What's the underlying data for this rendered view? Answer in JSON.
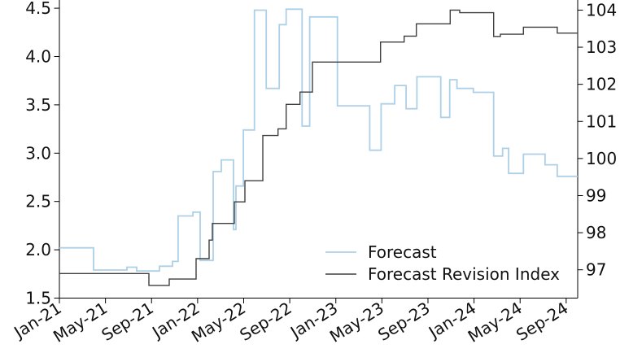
{
  "chart_data": {
    "type": "line",
    "subtype": "step-post",
    "title": "",
    "x_axis": {
      "unit": "months since Jan-2021",
      "tick_labels": [
        "Jan-21",
        "May-21",
        "Sep-21",
        "Jan-22",
        "May-22",
        "Sep-22",
        "Jan-23",
        "May-23",
        "Sep-23",
        "Jan-24",
        "May-24",
        "Sep-24"
      ],
      "tick_positions_months": [
        0,
        4,
        8,
        12,
        16,
        20,
        24,
        28,
        32,
        36,
        40,
        44
      ],
      "range_months": [
        0,
        45
      ],
      "label_rotation_deg": 32
    },
    "y_axis_left": {
      "ticks": [
        "1.5",
        "2.0",
        "2.5",
        "3.0",
        "3.5",
        "4.0",
        "4.5"
      ],
      "tick_values": [
        1.5,
        2.0,
        2.5,
        3.0,
        3.5,
        4.0,
        4.5
      ],
      "range": [
        1.5,
        4.5
      ],
      "applies_to_series": "Forecast"
    },
    "y_axis_right": {
      "ticks": [
        "97",
        "98",
        "99",
        "100",
        "101",
        "102",
        "103",
        "104"
      ],
      "tick_values": [
        97,
        98,
        99,
        100,
        101,
        102,
        103,
        104
      ],
      "range": [
        97,
        104
      ],
      "applies_to_series": "Forecast Revision Index"
    },
    "grid": false,
    "legend": {
      "position": "inside-lower-right",
      "frame": false,
      "entries": [
        "Forecast",
        "Forecast Revision Index"
      ]
    },
    "series": [
      {
        "name": "Forecast",
        "axis": "left",
        "color": "#aed0e6",
        "line_width": 1.8,
        "points": [
          [
            0,
            2.02
          ],
          [
            2.97,
            1.79
          ],
          [
            5.86,
            1.82
          ],
          [
            6.71,
            1.78
          ],
          [
            8.69,
            1.83
          ],
          [
            9.82,
            1.88
          ],
          [
            10.31,
            2.35
          ],
          [
            11.59,
            2.39
          ],
          [
            12.22,
            1.89
          ],
          [
            13.35,
            2.81
          ],
          [
            14.06,
            2.93
          ],
          [
            15.12,
            2.21
          ],
          [
            15.33,
            2.66
          ],
          [
            15.97,
            3.24
          ],
          [
            16.93,
            4.48
          ],
          [
            17.96,
            3.67
          ],
          [
            19.09,
            4.33
          ],
          [
            19.69,
            4.49
          ],
          [
            21.07,
            3.28
          ],
          [
            21.73,
            4.41
          ],
          [
            24.14,
            3.49
          ],
          [
            26.94,
            3.03
          ],
          [
            27.93,
            3.51
          ],
          [
            29.11,
            3.7
          ],
          [
            30.1,
            3.46
          ],
          [
            31.04,
            3.79
          ],
          [
            33.11,
            3.37
          ],
          [
            33.89,
            3.76
          ],
          [
            34.52,
            3.67
          ],
          [
            35.94,
            3.63
          ],
          [
            37.7,
            2.97
          ],
          [
            38.48,
            3.05
          ],
          [
            39.0,
            2.79
          ],
          [
            40.29,
            2.99
          ],
          [
            42.17,
            2.88
          ],
          [
            43.23,
            2.76
          ]
        ]
      },
      {
        "name": "Forecast Revision Index",
        "axis": "right",
        "color": "#3f3f3f",
        "line_width": 1.4,
        "points": [
          [
            0,
            96.9
          ],
          [
            7.77,
            96.58
          ],
          [
            9.54,
            96.75
          ],
          [
            11.87,
            97.3
          ],
          [
            13.0,
            97.8
          ],
          [
            13.28,
            98.25
          ],
          [
            15.19,
            98.83
          ],
          [
            16.11,
            99.4
          ],
          [
            17.66,
            100.62
          ],
          [
            18.98,
            100.8
          ],
          [
            19.69,
            101.46
          ],
          [
            20.89,
            101.79
          ],
          [
            21.97,
            102.6
          ],
          [
            27.88,
            103.14
          ],
          [
            29.93,
            103.3
          ],
          [
            30.99,
            103.63
          ],
          [
            33.93,
            104.0
          ],
          [
            34.76,
            103.93
          ],
          [
            37.7,
            103.29
          ],
          [
            38.29,
            103.35
          ],
          [
            40.29,
            103.54
          ],
          [
            43.23,
            103.38
          ]
        ]
      }
    ]
  },
  "colors": {
    "background": "#ffffff",
    "axis": "#000000",
    "tick_label": "#111111"
  }
}
